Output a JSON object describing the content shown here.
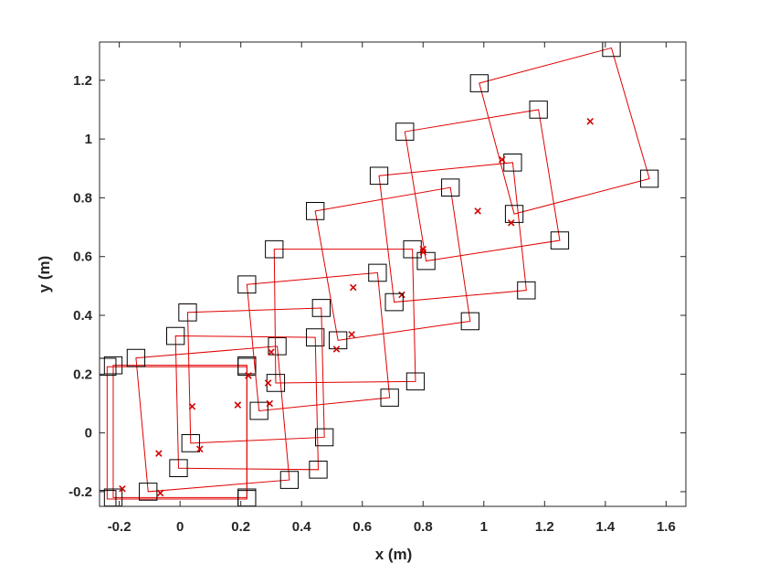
{
  "chart_data": {
    "type": "scatter",
    "title": "",
    "xlabel": "x (m)",
    "ylabel": "y (m)",
    "xlim": [
      -0.265,
      1.665
    ],
    "ylim": [
      -0.25,
      1.33
    ],
    "xticks": [
      -0.2,
      0,
      0.2,
      0.4,
      0.6,
      0.8,
      1,
      1.2,
      1.4,
      1.6
    ],
    "xtick_labels": [
      "-0.2",
      "0",
      "0.2",
      "0.4",
      "0.6",
      "0.8",
      "1",
      "1.2",
      "1.4",
      "1.6"
    ],
    "yticks": [
      -0.2,
      0,
      0.2,
      0.4,
      0.6,
      0.8,
      1,
      1.2
    ],
    "ytick_labels": [
      "-0.2",
      "0",
      "0.2",
      "0.4",
      "0.6",
      "0.8",
      "1",
      "1.2"
    ],
    "grid": false,
    "colors": {
      "outline": "#e00000",
      "marker": "#d40000",
      "square": "#000000"
    },
    "square_size_m": 0.058,
    "frames": [
      {
        "corners": [
          [
            -0.22,
            0.23
          ],
          [
            0.22,
            0.23
          ],
          [
            0.22,
            -0.22
          ],
          [
            -0.22,
            -0.22
          ]
        ],
        "center": [
          0.0,
          0.0
        ],
        "gone": true
      },
      {
        "corners": [
          [
            -0.24,
            0.225
          ],
          [
            0.22,
            0.225
          ],
          [
            0.22,
            -0.225
          ],
          [
            -0.24,
            -0.225
          ]
        ],
        "crosses": [
          [
            -0.19,
            -0.19
          ],
          [
            0.04,
            0.09
          ]
        ]
      },
      {
        "corners": [
          [
            -0.145,
            0.255
          ],
          [
            0.32,
            0.295
          ],
          [
            0.36,
            -0.16
          ],
          [
            -0.105,
            -0.2
          ]
        ],
        "crosses": [
          [
            -0.065,
            -0.205
          ],
          [
            0.19,
            0.095
          ]
        ]
      },
      {
        "corners": [
          [
            -0.015,
            0.33
          ],
          [
            0.445,
            0.325
          ],
          [
            0.455,
            -0.125
          ],
          [
            -0.005,
            -0.12
          ]
        ],
        "crosses": [
          [
            -0.07,
            -0.07
          ],
          [
            0.225,
            0.195
          ]
        ]
      },
      {
        "corners": [
          [
            0.025,
            0.41
          ],
          [
            0.465,
            0.425
          ],
          [
            0.475,
            -0.015
          ],
          [
            0.035,
            -0.035
          ]
        ],
        "crosses": [
          [
            0.065,
            -0.055
          ],
          [
            0.3,
            0.275
          ]
        ]
      },
      {
        "corners": [
          [
            0.22,
            0.505
          ],
          [
            0.65,
            0.545
          ],
          [
            0.69,
            0.12
          ],
          [
            0.26,
            0.075
          ]
        ],
        "crosses": [
          [
            0.295,
            0.1
          ],
          [
            0.57,
            0.495
          ]
        ]
      },
      {
        "corners": [
          [
            0.31,
            0.625
          ],
          [
            0.765,
            0.625
          ],
          [
            0.775,
            0.175
          ],
          [
            0.315,
            0.17
          ]
        ],
        "crosses": [
          [
            0.29,
            0.17
          ],
          [
            0.73,
            0.47
          ]
        ]
      },
      {
        "corners": [
          [
            0.445,
            0.755
          ],
          [
            0.89,
            0.835
          ],
          [
            0.955,
            0.38
          ],
          [
            0.52,
            0.315
          ]
        ],
        "crosses": [
          [
            0.515,
            0.285
          ],
          [
            0.8,
            0.625
          ]
        ]
      },
      {
        "corners": [
          [
            0.655,
            0.875
          ],
          [
            1.095,
            0.92
          ],
          [
            1.14,
            0.485
          ],
          [
            0.705,
            0.445
          ]
        ],
        "crosses": [
          [
            0.565,
            0.335
          ],
          [
            0.98,
            0.755
          ]
        ]
      },
      {
        "corners": [
          [
            0.74,
            1.025
          ],
          [
            1.18,
            1.1
          ],
          [
            1.25,
            0.655
          ],
          [
            0.81,
            0.585
          ]
        ],
        "crosses": [
          [
            0.8,
            0.615
          ],
          [
            1.06,
            0.93
          ]
        ]
      },
      {
        "corners": [
          [
            0.985,
            1.19
          ],
          [
            1.42,
            1.31
          ],
          [
            1.545,
            0.865
          ],
          [
            1.1,
            0.745
          ]
        ],
        "crosses": [
          [
            1.09,
            0.715
          ],
          [
            1.35,
            1.06
          ]
        ]
      }
    ]
  }
}
